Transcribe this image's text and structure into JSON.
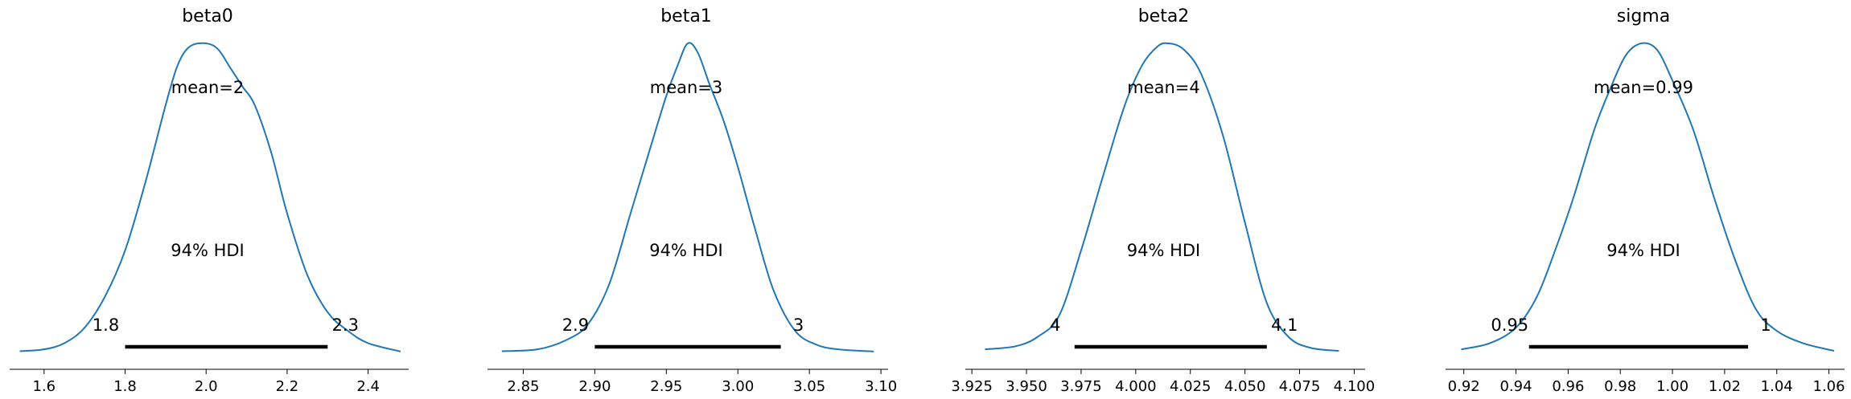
{
  "chart_data": [
    {
      "type": "line",
      "title": "beta0",
      "mean_label": "mean=2",
      "hdi_label": "94% HDI",
      "hdi_low": 1.8,
      "hdi_high": 2.3,
      "hdi_low_label": "1.8",
      "hdi_high_label": "2.3",
      "xlim": [
        1.515,
        2.5
      ],
      "xticks": [
        1.6,
        1.8,
        2.0,
        2.2,
        2.4
      ],
      "xtick_labels": [
        "1.6",
        "1.8",
        "2.0",
        "2.2",
        "2.4"
      ],
      "color": "#1f77b4",
      "density_x": [
        1.54,
        1.6,
        1.65,
        1.7,
        1.75,
        1.8,
        1.85,
        1.9,
        1.93,
        1.96,
        2.0,
        2.03,
        2.06,
        2.09,
        2.12,
        2.16,
        2.2,
        2.25,
        2.3,
        2.35,
        2.4,
        2.48
      ],
      "density_y": [
        0.004,
        0.01,
        0.03,
        0.08,
        0.18,
        0.33,
        0.55,
        0.8,
        0.93,
        0.99,
        1.0,
        0.98,
        0.92,
        0.86,
        0.8,
        0.65,
        0.45,
        0.25,
        0.13,
        0.07,
        0.03,
        0.003
      ]
    },
    {
      "type": "line",
      "title": "beta1",
      "mean_label": "mean=3",
      "hdi_label": "94% HDI",
      "hdi_low": 2.9,
      "hdi_high": 3.03,
      "hdi_low_label": "2.9",
      "hdi_high_label": "3",
      "xlim": [
        2.825,
        3.105
      ],
      "xticks": [
        2.85,
        2.9,
        2.95,
        3.0,
        3.05,
        3.1
      ],
      "xtick_labels": [
        "2.85",
        "2.90",
        "2.95",
        "3.00",
        "3.05",
        "3.10"
      ],
      "color": "#1f77b4",
      "density_x": [
        2.835,
        2.86,
        2.88,
        2.895,
        2.91,
        2.925,
        2.94,
        2.95,
        2.958,
        2.965,
        2.972,
        2.98,
        2.99,
        3.0,
        3.012,
        3.025,
        3.04,
        3.055,
        3.07,
        3.095
      ],
      "density_y": [
        0.004,
        0.01,
        0.04,
        0.09,
        0.22,
        0.45,
        0.68,
        0.83,
        0.93,
        1.0,
        0.97,
        0.87,
        0.75,
        0.6,
        0.4,
        0.2,
        0.07,
        0.025,
        0.01,
        0.003
      ]
    },
    {
      "type": "line",
      "title": "beta2",
      "mean_label": "mean=4",
      "hdi_label": "94% HDI",
      "hdi_low": 3.972,
      "hdi_high": 4.06,
      "hdi_low_label": "4",
      "hdi_high_label": "4.1",
      "xlim": [
        3.922,
        4.105
      ],
      "xticks": [
        3.925,
        3.95,
        3.975,
        4.0,
        4.025,
        4.05,
        4.075,
        4.1
      ],
      "xtick_labels": [
        "3.925",
        "3.950",
        "3.975",
        "4.000",
        "4.025",
        "4.050",
        "4.075",
        "4.100"
      ],
      "color": "#1f77b4",
      "density_x": [
        3.931,
        3.945,
        3.955,
        3.965,
        3.975,
        3.985,
        3.995,
        4.003,
        4.01,
        4.015,
        4.022,
        4.03,
        4.04,
        4.05,
        4.06,
        4.07,
        4.08,
        4.093
      ],
      "density_y": [
        0.01,
        0.02,
        0.05,
        0.12,
        0.33,
        0.57,
        0.8,
        0.93,
        0.99,
        1.0,
        0.98,
        0.9,
        0.7,
        0.42,
        0.16,
        0.05,
        0.015,
        0.005
      ]
    },
    {
      "type": "line",
      "title": "sigma",
      "mean_label": "mean=0.99",
      "hdi_label": "94% HDI",
      "hdi_low": 0.945,
      "hdi_high": 1.029,
      "hdi_low_label": "0.95",
      "hdi_high_label": "1",
      "xlim": [
        0.913,
        1.066
      ],
      "xticks": [
        0.92,
        0.94,
        0.96,
        0.98,
        1.0,
        1.02,
        1.04,
        1.06
      ],
      "xtick_labels": [
        "0.92",
        "0.94",
        "0.96",
        "0.98",
        "1.00",
        "1.02",
        "1.04",
        "1.06"
      ],
      "color": "#1f77b4",
      "density_x": [
        0.919,
        0.93,
        0.94,
        0.948,
        0.955,
        0.962,
        0.97,
        0.976,
        0.982,
        0.988,
        0.994,
        1.0,
        1.008,
        1.016,
        1.024,
        1.032,
        1.04,
        1.05,
        1.062
      ],
      "density_y": [
        0.01,
        0.03,
        0.08,
        0.18,
        0.33,
        0.5,
        0.72,
        0.85,
        0.96,
        1.0,
        0.98,
        0.88,
        0.72,
        0.5,
        0.3,
        0.14,
        0.07,
        0.03,
        0.005
      ]
    }
  ]
}
